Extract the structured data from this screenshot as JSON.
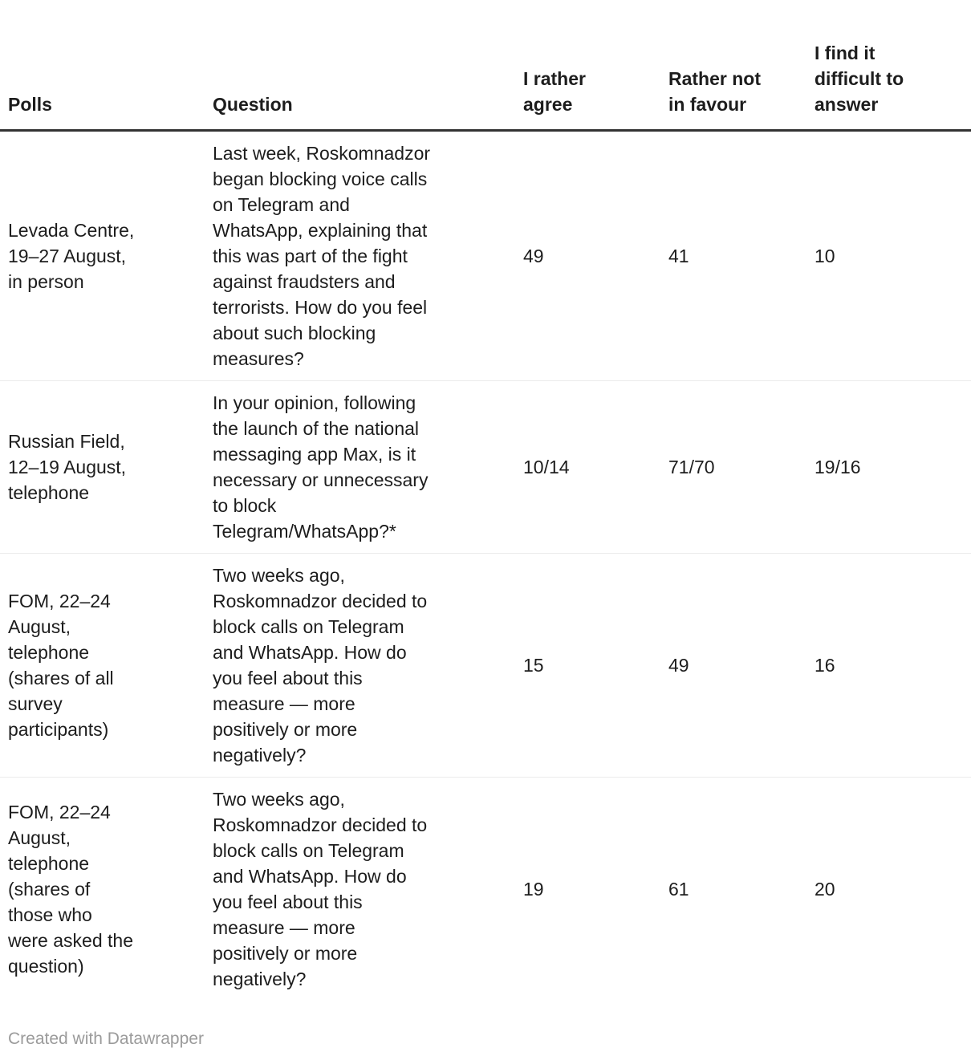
{
  "chart_data": {
    "type": "table",
    "title": "",
    "columns": [
      "Polls",
      "Question",
      "I rather agree",
      "Rather not in favour",
      "I find it difficult to answer"
    ],
    "rows": [
      {
        "polls": "Levada Centre, 19–27 August, in person",
        "question": "Last week, Roskomnadzor began blocking voice calls on Telegram and WhatsApp, explaining that this was part of the fight against fraudsters and terrorists. How do you feel about such blocking measures?",
        "i_rather_agree": "49",
        "rather_not_in_favour": "41",
        "difficult_to_answer": "10"
      },
      {
        "polls": "Russian Field, 12–19 August, telephone",
        "question": "In your opinion, following the launch of the national messaging app Max, is it necessary or unnecessary to block Telegram/WhatsApp?*",
        "i_rather_agree": "10/14",
        "rather_not_in_favour": "71/70",
        "difficult_to_answer": "19/16"
      },
      {
        "polls": "FOM, 22–24 August, telephone (shares of all survey participants)",
        "question": "Two weeks ago, Roskomnadzor decided to block calls on Telegram and WhatsApp. How do you feel about this measure — more positively or more negatively?",
        "i_rather_agree": "15",
        "rather_not_in_favour": "49",
        "difficult_to_answer": "16"
      },
      {
        "polls": "FOM, 22–24 August, telephone (shares of those who were asked the question)",
        "question": "Two weeks ago, Roskomnadzor decided to block calls on Telegram and WhatsApp. How do you feel about this measure — more positively or more negatively?",
        "i_rather_agree": "19",
        "rather_not_in_favour": "61",
        "difficult_to_answer": "20"
      }
    ],
    "legend_position": "none",
    "grid": "horizontal-rules"
  },
  "table": {
    "columns": [
      "Polls",
      "Question",
      "I rather\nagree",
      "Rather not\nin favour",
      "I find it\ndifficult to\nanswer"
    ],
    "rows": [
      {
        "polls": "Levada Centre,\n19–27 August,\nin person",
        "question": "Last week, Roskomnadzor\nbegan blocking voice calls\non Telegram and\nWhatsApp, explaining that\nthis was part of the fight\nagainst fraudsters and\nterrorists. How do you feel\nabout such blocking\nmeasures?",
        "agree": "49",
        "notfav": "41",
        "difficult": "10"
      },
      {
        "polls": "Russian Field,\n12–19 August,\ntelephone",
        "question": "In your opinion, following\nthe launch of the national\nmessaging app Max, is it\nnecessary or unnecessary\nto block\nTelegram/WhatsApp?*",
        "agree": "10/14",
        "notfav": "71/70",
        "difficult": "19/16"
      },
      {
        "polls": "FOM, 22–24\nAugust,\ntelephone\n(shares of all\nsurvey\nparticipants)",
        "question": "Two weeks ago,\nRoskomnadzor decided to\nblock calls on Telegram\nand WhatsApp. How do\nyou feel about this\nmeasure — more\npositively or more\nnegatively?",
        "agree": "15",
        "notfav": "49",
        "difficult": "16"
      },
      {
        "polls": "FOM, 22–24\nAugust,\ntelephone\n(shares of\nthose who\nwere asked the\nquestion)",
        "question": "Two weeks ago,\nRoskomnadzor decided to\nblock calls on Telegram\nand WhatsApp. How do\nyou feel about this\nmeasure — more\npositively or more\nnegatively?",
        "agree": "19",
        "notfav": "61",
        "difficult": "20"
      }
    ]
  },
  "footer": {
    "credit": "Created with Datawrapper"
  },
  "colors": {
    "text": "#1d1d1d",
    "header_rule": "#333333",
    "row_rule": "#ebebeb",
    "credit_text": "#9b9b9b",
    "background": "#ffffff"
  }
}
